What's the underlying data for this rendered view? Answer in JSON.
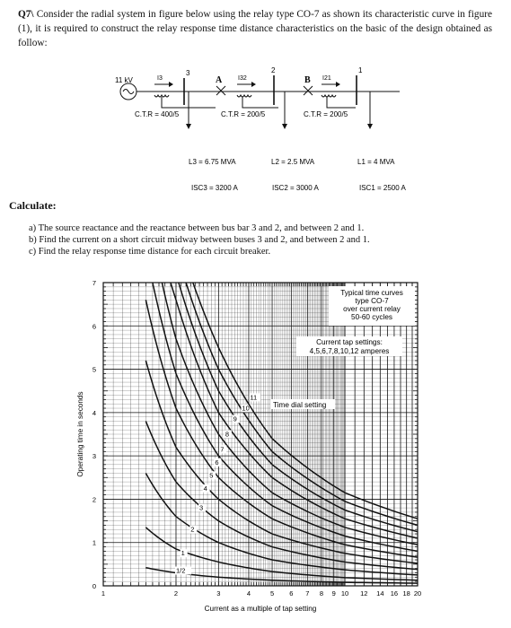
{
  "question": {
    "number": "Q7\\",
    "text": "Consider the radial system in figure below using the relay type CO-7 as shown its characteristic curve in figure (1), it is required to construct the relay response time distance characteristics on the basic of the design obtained as follow:"
  },
  "diagram": {
    "source_label": "11 kV",
    "bus_numbers": [
      "3",
      "2",
      "1"
    ],
    "breaker_labels": [
      "A",
      "B"
    ],
    "currents": [
      "I3",
      "I32",
      "I21"
    ],
    "ctr_labels": [
      "C.T.R = 400/5",
      "C.T.R = 200/5",
      "C.T.R = 200/5"
    ],
    "loads": [
      "L3 = 6.75 MVA",
      "L2 = 2.5 MVA",
      "L1 = 4 MVA"
    ],
    "fault_currents": [
      "ISC3 = 3200 A",
      "ISC2 = 3000 A",
      "ISC1 = 2500 A"
    ]
  },
  "calculate": {
    "heading": "Calculate:",
    "items": [
      "a)  The source reactance and the reactance between bus bar 3 and 2, and between 2 and 1.",
      "b)  Find the current on a short circuit midway between buses 3 and 2, and between 2 and 1.",
      "c)  Find the relay response time distance for each circuit breaker."
    ]
  },
  "chart_data": {
    "type": "line",
    "title_lines": [
      "Typical time curves",
      "type CO-7",
      "over current relay",
      "50-60 cycles"
    ],
    "tap_settings_lines": [
      "Current tap settings:",
      "4,5,6,7,8,10,12 amperes"
    ],
    "dial_label": "Time dial setting",
    "xlabel": "Current as a multiple of tap setting",
    "ylabel": "Operating time in seconds",
    "x_scale": "log",
    "xlim": [
      1,
      20
    ],
    "ylim": [
      0,
      7
    ],
    "x_ticks": [
      "1",
      "2",
      "3",
      "4",
      "5",
      "6",
      "7",
      "8",
      "9",
      "10",
      "12",
      "14",
      "16",
      "18",
      "20"
    ],
    "x_tick_values": [
      1,
      2,
      3,
      4,
      5,
      6,
      7,
      8,
      9,
      10,
      12,
      14,
      16,
      18,
      20
    ],
    "y_ticks": [
      "0",
      "1",
      "2",
      "3",
      "4",
      "5",
      "6",
      "7"
    ],
    "series": [
      {
        "name": "1/2",
        "label_at": [
          2.0,
          0.3
        ],
        "points": [
          [
            1.5,
            0.42
          ],
          [
            2,
            0.3
          ],
          [
            3,
            0.2
          ],
          [
            5,
            0.13
          ],
          [
            10,
            0.08
          ],
          [
            20,
            0.06
          ]
        ]
      },
      {
        "name": "1",
        "label_at": [
          2.1,
          0.7
        ],
        "points": [
          [
            1.5,
            1.35
          ],
          [
            2,
            0.85
          ],
          [
            3,
            0.55
          ],
          [
            5,
            0.33
          ],
          [
            10,
            0.19
          ],
          [
            20,
            0.13
          ]
        ]
      },
      {
        "name": "2",
        "label_at": [
          2.3,
          1.25
        ],
        "points": [
          [
            1.5,
            2.6
          ],
          [
            2,
            1.6
          ],
          [
            3,
            1.0
          ],
          [
            5,
            0.6
          ],
          [
            10,
            0.37
          ],
          [
            20,
            0.25
          ]
        ]
      },
      {
        "name": "3",
        "label_at": [
          2.5,
          1.75
        ],
        "points": [
          [
            1.5,
            3.8
          ],
          [
            2,
            2.4
          ],
          [
            3,
            1.5
          ],
          [
            5,
            0.9
          ],
          [
            10,
            0.55
          ],
          [
            20,
            0.38
          ]
        ]
      },
      {
        "name": "4",
        "label_at": [
          2.6,
          2.2
        ],
        "points": [
          [
            1.5,
            5.2
          ],
          [
            2,
            3.2
          ],
          [
            3,
            2.0
          ],
          [
            5,
            1.2
          ],
          [
            10,
            0.75
          ],
          [
            20,
            0.52
          ]
        ]
      },
      {
        "name": "5",
        "label_at": [
          2.75,
          2.5
        ],
        "points": [
          [
            1.5,
            6.6
          ],
          [
            2,
            4.1
          ],
          [
            3,
            2.5
          ],
          [
            5,
            1.55
          ],
          [
            10,
            0.95
          ],
          [
            20,
            0.66
          ]
        ]
      },
      {
        "name": "6",
        "label_at": [
          2.9,
          2.8
        ],
        "points": [
          [
            1.6,
            7
          ],
          [
            2,
            4.9
          ],
          [
            3,
            3.0
          ],
          [
            5,
            1.85
          ],
          [
            10,
            1.15
          ],
          [
            20,
            0.8
          ]
        ]
      },
      {
        "name": "7",
        "label_at": [
          3.05,
          3.1
        ],
        "points": [
          [
            1.75,
            7
          ],
          [
            2,
            5.7
          ],
          [
            3,
            3.5
          ],
          [
            5,
            2.15
          ],
          [
            10,
            1.35
          ],
          [
            20,
            0.95
          ]
        ]
      },
      {
        "name": "8",
        "label_at": [
          3.2,
          3.45
        ],
        "points": [
          [
            1.9,
            7
          ],
          [
            2,
            6.6
          ],
          [
            3,
            4.0
          ],
          [
            5,
            2.5
          ],
          [
            10,
            1.55
          ],
          [
            20,
            1.1
          ]
        ]
      },
      {
        "name": "9",
        "label_at": [
          3.45,
          3.8
        ],
        "points": [
          [
            2.05,
            7
          ],
          [
            3,
            4.5
          ],
          [
            5,
            2.8
          ],
          [
            10,
            1.75
          ],
          [
            20,
            1.25
          ]
        ]
      },
      {
        "name": "10",
        "label_at": [
          3.75,
          4.05
        ],
        "points": [
          [
            2.2,
            7
          ],
          [
            3,
            5.0
          ],
          [
            5,
            3.1
          ],
          [
            10,
            1.95
          ],
          [
            20,
            1.4
          ]
        ]
      },
      {
        "name": "11",
        "label_at": [
          4.05,
          4.3
        ],
        "points": [
          [
            2.35,
            7
          ],
          [
            3,
            5.5
          ],
          [
            5,
            3.4
          ],
          [
            10,
            2.15
          ],
          [
            20,
            1.55
          ]
        ]
      }
    ]
  }
}
